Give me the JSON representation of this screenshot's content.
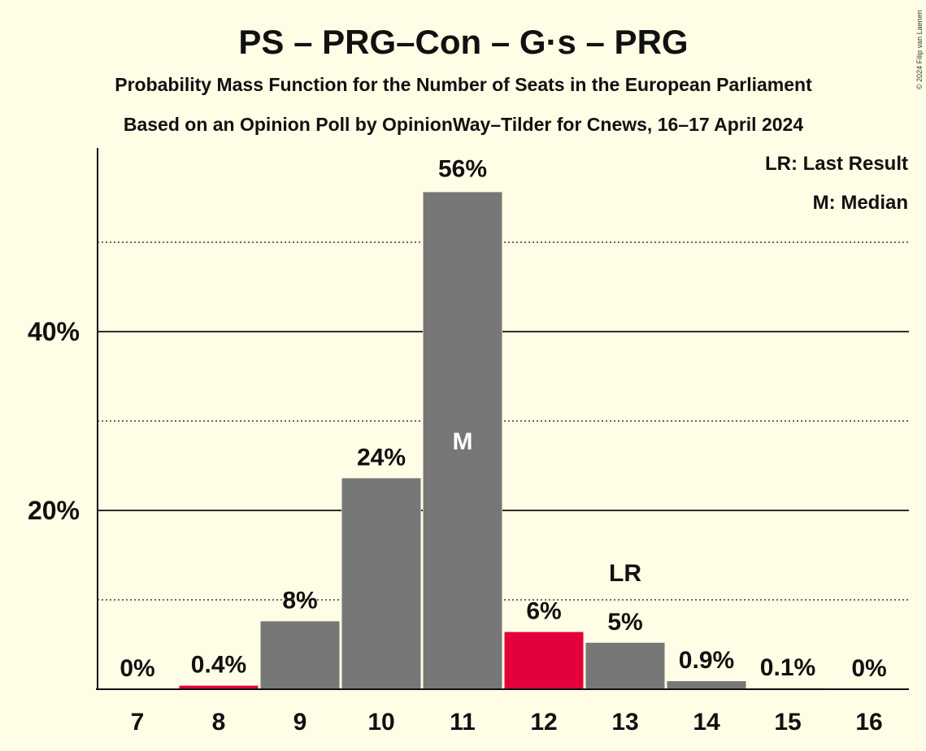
{
  "chart_data": {
    "type": "bar",
    "title": "PS – PRG–Con – G·s – PRG",
    "subtitle": "Probability Mass Function for the Number of Seats in the European Parliament",
    "subtitle2": "Based on an Opinion Poll by OpinionWay–Tilder for Cnews, 16–17 April 2024",
    "credit": "© 2024 Filip van Laenen",
    "legend": [
      "LR: Last Result",
      "M: Median"
    ],
    "legend_position": "top-right",
    "categories": [
      "7",
      "8",
      "9",
      "10",
      "11",
      "12",
      "13",
      "14",
      "15",
      "16"
    ],
    "values": [
      0,
      0.4,
      7.6,
      23.6,
      55.6,
      6.4,
      5.2,
      0.9,
      0.1,
      0
    ],
    "data_labels": [
      "0%",
      "0.4%",
      "8%",
      "24%",
      "56%",
      "6%",
      "5%",
      "0.9%",
      "0.1%",
      "0%"
    ],
    "bar_colors": [
      "#777777",
      "#E4003B",
      "#777777",
      "#777777",
      "#777777",
      "#E4003B",
      "#777777",
      "#777777",
      "#777777",
      "#777777"
    ],
    "median_category": "11",
    "median_marker": "M",
    "last_result_category": "13",
    "last_result_marker": "LR",
    "ylim": [
      0,
      60
    ],
    "yticks_major": [
      20,
      40
    ],
    "ytick_labels": [
      "20%",
      "40%"
    ],
    "ygrid_minor": [
      10,
      30,
      50
    ],
    "xlabel": "",
    "ylabel": ""
  },
  "colors": {
    "background": "#FFFDE6",
    "bar_default": "#777777",
    "bar_highlight": "#E4003B",
    "text": "#111111"
  }
}
